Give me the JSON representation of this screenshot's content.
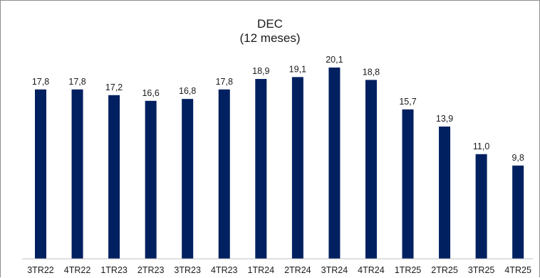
{
  "chart_data": {
    "type": "bar",
    "title": "DEC",
    "subtitle": "(12 meses)",
    "categories": [
      "3TR22",
      "4TR22",
      "1TR23",
      "2TR23",
      "3TR23",
      "4TR23",
      "1TR24",
      "2TR24",
      "3TR24",
      "4TR24",
      "1TR25",
      "2TR25",
      "3TR25",
      "4TR25"
    ],
    "values": [
      17.8,
      17.8,
      17.2,
      16.6,
      16.8,
      17.8,
      18.9,
      19.1,
      20.1,
      18.8,
      15.7,
      13.9,
      11.0,
      9.8
    ],
    "value_labels": [
      "17,8",
      "17,8",
      "17,2",
      "16,6",
      "16,8",
      "17,8",
      "18,9",
      "19,1",
      "20,1",
      "18,8",
      "15,7",
      "13,9",
      "11,0",
      "9,8"
    ],
    "xlabel": "",
    "ylabel": "",
    "ylim": [
      0,
      20.1
    ],
    "grid": false,
    "bar_color": "#002060"
  }
}
